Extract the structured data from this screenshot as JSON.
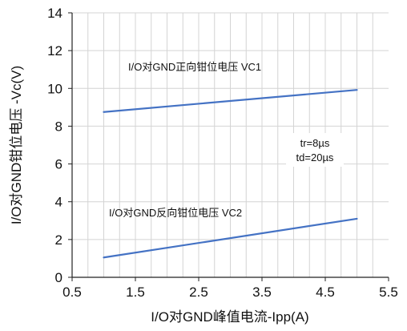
{
  "chart_data": {
    "type": "line",
    "xlabel": "I/O对GND峰值电流-Ipp(A)",
    "ylabel": "I/O对GND钳位电压 -Vc(V)",
    "xlim": [
      0.5,
      5.5
    ],
    "ylim": [
      0,
      14
    ],
    "xticks": [
      "0.5",
      "1.5",
      "2.5",
      "3.5",
      "4.5",
      "5.5"
    ],
    "yticks": [
      "0",
      "2",
      "4",
      "6",
      "8",
      "10",
      "12",
      "14"
    ],
    "grid": true,
    "series": [
      {
        "name": "I/O对GND正向钳位电压 VC1",
        "x": [
          1,
          5
        ],
        "y": [
          8.75,
          9.92
        ],
        "color": "#4472c4"
      },
      {
        "name": "I/O对GND反向钳位电压 VC2",
        "x": [
          1,
          5
        ],
        "y": [
          1.05,
          3.1
        ],
        "color": "#4472c4"
      }
    ],
    "annotations": [
      {
        "text": "tr=8µs"
      },
      {
        "text": "td=20µs"
      }
    ]
  }
}
